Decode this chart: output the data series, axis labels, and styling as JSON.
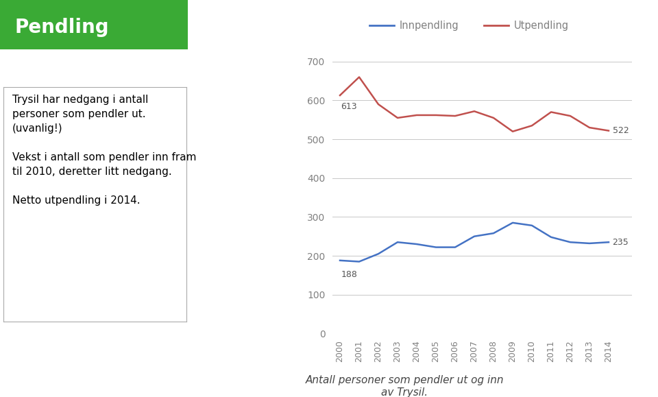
{
  "years": [
    2000,
    2001,
    2002,
    2003,
    2004,
    2005,
    2006,
    2007,
    2008,
    2009,
    2010,
    2011,
    2012,
    2013,
    2014
  ],
  "innpendling": [
    188,
    185,
    205,
    235,
    230,
    222,
    222,
    250,
    258,
    285,
    278,
    248,
    235,
    232,
    235
  ],
  "utpendling": [
    613,
    660,
    590,
    555,
    562,
    562,
    560,
    572,
    555,
    520,
    535,
    570,
    560,
    530,
    522
  ],
  "innpendling_color": "#4472C4",
  "utpendling_color": "#C0504D",
  "background_color": "#ffffff",
  "grid_color": "#c8c8c8",
  "ylim": [
    0,
    700
  ],
  "yticks": [
    0,
    100,
    200,
    300,
    400,
    500,
    600,
    700
  ],
  "legend_innpendling": "Innpendling",
  "legend_utpendling": "Utpendling",
  "first_inn_label": "188",
  "last_inn_label": "235",
  "first_ut_label": "613",
  "last_ut_label": "522",
  "subtitle": "Antall personer som pendler ut og inn\nav Trysil.",
  "title_text": "Pendling",
  "title_bg_color": "#3aaa35",
  "title_text_color": "#ffffff",
  "text_box_text": "Trysil har nedgang i antall\npersoner som pendler ut.\n(uvanlig!)\n\nVekst i antall som pendler inn fram\ntil 2010, deretter litt nedgang.\n\nNetto utpendling i 2014.",
  "line_width": 1.8,
  "tick_label_color": "#808080",
  "annotation_color": "#555555"
}
